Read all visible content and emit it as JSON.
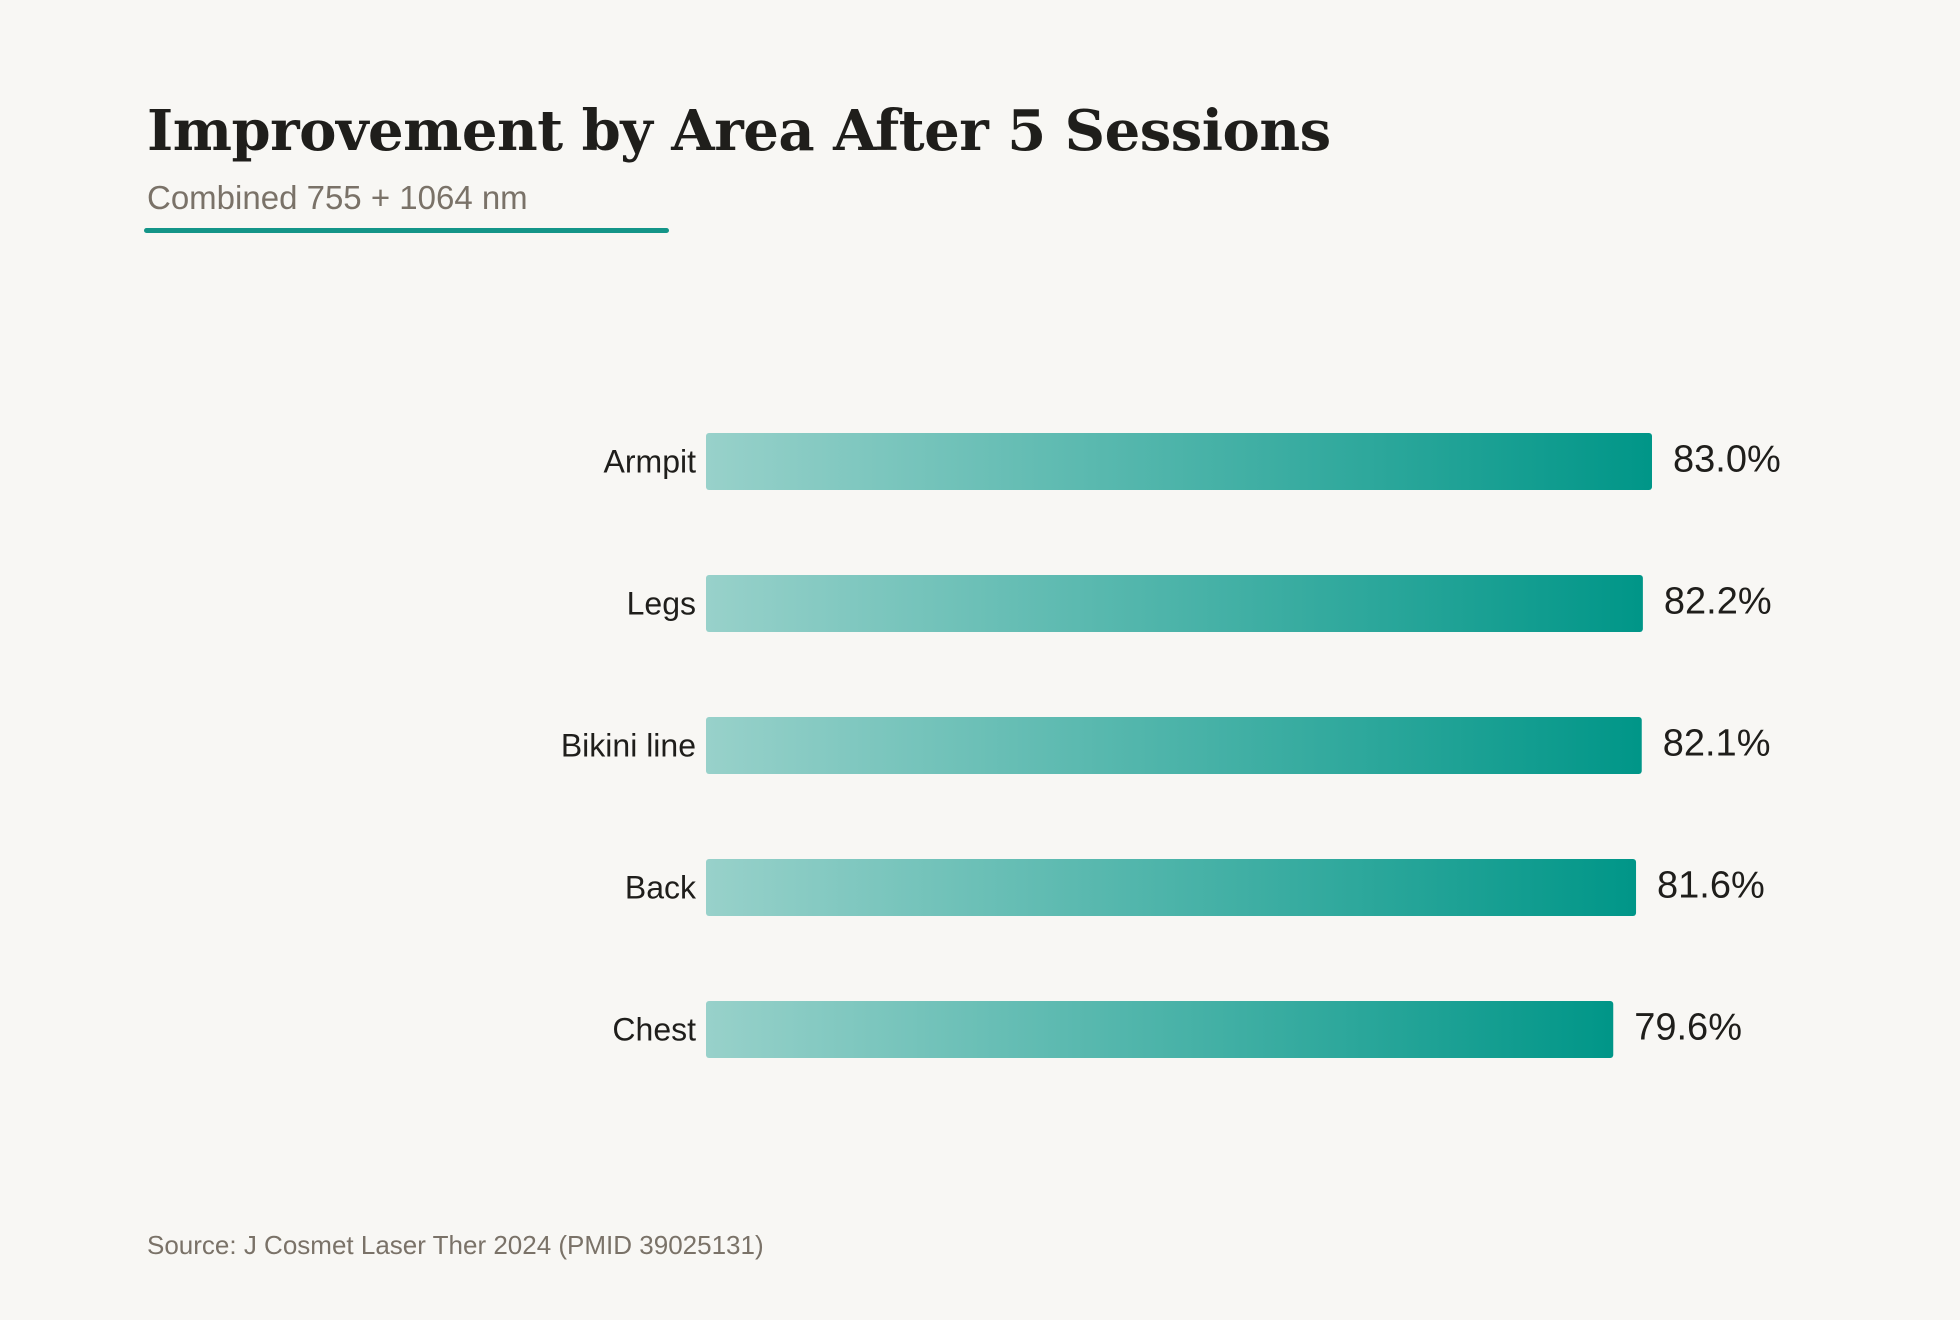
{
  "chart_data": {
    "type": "bar",
    "orientation": "horizontal",
    "title": "Improvement by Area After 5 Sessions",
    "subtitle": "Combined 755 + 1064 nm",
    "categories": [
      "Armpit",
      "Legs",
      "Bikini line",
      "Back",
      "Chest"
    ],
    "values": [
      83.0,
      82.2,
      82.1,
      81.6,
      79.6
    ],
    "value_labels": [
      "83.0%",
      "82.2%",
      "82.1%",
      "81.6%",
      "79.6%"
    ],
    "xlim": [
      0,
      83.0
    ],
    "grid": false,
    "legend": "none",
    "source": "Source: J Cosmet Laser Ther 2024 (PMID 39025131)"
  },
  "colors": {
    "background": "#f8f7f4",
    "bar_start": "#98d1ca",
    "bar_end": "#009688",
    "accent": "#149588",
    "title": "#1f1e1b",
    "muted": "#7a7268"
  }
}
